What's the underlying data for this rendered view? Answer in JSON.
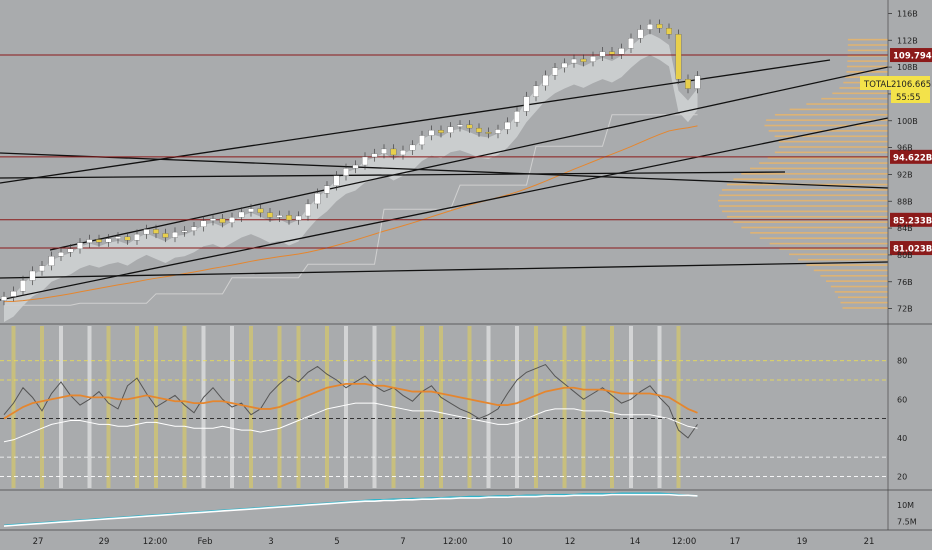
{
  "chart_data": {
    "type": "line",
    "instrument_label": "TOTAL2",
    "last_price_label": "106.665B",
    "countdown_label": "55:55",
    "price_axis": {
      "scale": "linear",
      "range": [
        70,
        118
      ],
      "unit": "B",
      "ticks": [
        "116B",
        "112B",
        "108B",
        "104B",
        "100B",
        "96B",
        "92B",
        "88B",
        "84B",
        "80B",
        "76B",
        "72B"
      ]
    },
    "x_axis": {
      "ticks": [
        "27",
        "29",
        "12:00",
        "Feb",
        "3",
        "5",
        "7",
        "12:00",
        "10",
        "12",
        "14",
        "12:00",
        "17",
        "19",
        "21"
      ]
    },
    "horizontal_levels": [
      {
        "value": 109.794,
        "label": "109.794B"
      },
      {
        "value": 94.622,
        "label": "94.622B"
      },
      {
        "value": 85.233,
        "label": "85.233B"
      },
      {
        "value": 81.023,
        "label": "81.023B"
      }
    ],
    "price_series": {
      "name": "",
      "step_days": 0.5,
      "values": [
        73.8,
        74.6,
        76.2,
        77.6,
        78.4,
        79.8,
        80.4,
        80.9,
        81.8,
        82.3,
        81.9,
        82.4,
        82.7,
        82.2,
        83.1,
        83.8,
        83.2,
        82.6,
        83.4,
        83.6,
        84.2,
        85.1,
        85.4,
        84.8,
        85.6,
        86.4,
        86.9,
        86.3,
        85.6,
        85.9,
        85.2,
        85.8,
        87.6,
        89.2,
        90.3,
        91.8,
        92.9,
        93.4,
        94.6,
        95.1,
        95.8,
        94.9,
        95.6,
        96.4,
        97.8,
        98.6,
        98.2,
        99.1,
        99.4,
        98.9,
        98.3,
        98.1,
        98.7,
        99.8,
        101.4,
        103.6,
        105.2,
        106.8,
        107.9,
        108.6,
        109.2,
        108.8,
        109.6,
        110.3,
        109.9,
        110.8,
        112.3,
        113.6,
        114.4,
        113.8,
        112.9,
        106.2,
        104.8,
        106.7
      ]
    },
    "indicator_panel": {
      "ticks": [
        "80",
        "60",
        "40",
        "20"
      ],
      "range": [
        14,
        98
      ],
      "reference_levels": [
        80,
        70,
        50,
        30,
        20
      ],
      "series": [
        {
          "name": "",
          "color": "#555555",
          "values": [
            52,
            58,
            66,
            61,
            54,
            63,
            69,
            62,
            57,
            60,
            64,
            58,
            55,
            67,
            71,
            63,
            56,
            59,
            62,
            57,
            53,
            61,
            66,
            60,
            56,
            58,
            52,
            55,
            63,
            68,
            72,
            69,
            74,
            77,
            73,
            70,
            66,
            69,
            72,
            67,
            64,
            66,
            62,
            59,
            64,
            67,
            61,
            58,
            55,
            53,
            50,
            52,
            55,
            63,
            70,
            74,
            76,
            78,
            72,
            68,
            64,
            60,
            63,
            66,
            62,
            58,
            60,
            64,
            67,
            61,
            56,
            44,
            40,
            47
          ]
        },
        {
          "name": "",
          "color": "#e5862e",
          "values": [
            50,
            53,
            56,
            58,
            59,
            60,
            61,
            62,
            62,
            61,
            61,
            61,
            60,
            60,
            61,
            62,
            61,
            60,
            59,
            59,
            58,
            58,
            59,
            59,
            58,
            57,
            56,
            55,
            55,
            56,
            58,
            60,
            62,
            64,
            66,
            67,
            68,
            68,
            68,
            67,
            67,
            66,
            65,
            64,
            64,
            64,
            63,
            62,
            61,
            60,
            59,
            58,
            57,
            57,
            58,
            60,
            62,
            64,
            65,
            66,
            66,
            65,
            65,
            65,
            64,
            63,
            63,
            63,
            63,
            62,
            61,
            58,
            55,
            53
          ]
        },
        {
          "name": "",
          "color": "#ffffff",
          "values": [
            38,
            39,
            41,
            43,
            45,
            47,
            48,
            49,
            49,
            48,
            47,
            47,
            46,
            46,
            47,
            48,
            48,
            47,
            46,
            46,
            45,
            45,
            45,
            46,
            45,
            44,
            44,
            43,
            44,
            45,
            47,
            49,
            51,
            53,
            55,
            56,
            57,
            58,
            58,
            58,
            57,
            56,
            55,
            54,
            54,
            54,
            53,
            52,
            51,
            50,
            49,
            48,
            47,
            47,
            48,
            50,
            52,
            54,
            55,
            55,
            55,
            54,
            54,
            54,
            53,
            52,
            52,
            52,
            52,
            51,
            50,
            48,
            46,
            45
          ]
        }
      ]
    },
    "lower_panel": {
      "ticks": [
        "10M",
        "7.5M"
      ],
      "range": [
        6.5,
        12
      ],
      "series": [
        {
          "name": "",
          "color": "#2fb3c9",
          "values": [
            6.9,
            7.0,
            7.1,
            7.2,
            7.3,
            7.4,
            7.5,
            7.6,
            7.7,
            7.8,
            7.9,
            8.0,
            8.1,
            8.2,
            8.3,
            8.4,
            8.5,
            8.6,
            8.7,
            8.8,
            8.9,
            9.0,
            9.1,
            9.2,
            9.3,
            9.4,
            9.5,
            9.6,
            9.7,
            9.8,
            9.9,
            10.0,
            10.1,
            10.2,
            10.3,
            10.4,
            10.5,
            10.6,
            10.7,
            10.8,
            10.8,
            10.9,
            10.9,
            11.0,
            11.0,
            11.1,
            11.1,
            11.2,
            11.2,
            11.3,
            11.3,
            11.3,
            11.4,
            11.4,
            11.4,
            11.5,
            11.5,
            11.5,
            11.6,
            11.6,
            11.6,
            11.7,
            11.7,
            11.7,
            11.7,
            11.8,
            11.8,
            11.8,
            11.8,
            11.8,
            11.7,
            11.6,
            11.5,
            11.4
          ]
        },
        {
          "name": "",
          "color": "#ffffff",
          "values": [
            6.8,
            6.9,
            7.0,
            7.1,
            7.2,
            7.3,
            7.4,
            7.5,
            7.6,
            7.7,
            7.8,
            7.9,
            8.0,
            8.1,
            8.2,
            8.3,
            8.4,
            8.5,
            8.6,
            8.7,
            8.8,
            8.9,
            9.0,
            9.1,
            9.2,
            9.3,
            9.4,
            9.5,
            9.6,
            9.7,
            9.8,
            9.9,
            10.0,
            10.1,
            10.2,
            10.3,
            10.4,
            10.5,
            10.6,
            10.6,
            10.7,
            10.7,
            10.8,
            10.8,
            10.9,
            10.9,
            11.0,
            11.0,
            11.1,
            11.1,
            11.1,
            11.2,
            11.2,
            11.2,
            11.3,
            11.3,
            11.3,
            11.4,
            11.4,
            11.4,
            11.5,
            11.5,
            11.5,
            11.5,
            11.6,
            11.6,
            11.6,
            11.6,
            11.6,
            11.6,
            11.6,
            11.5,
            11.5,
            11.4
          ]
        }
      ]
    },
    "colors": {
      "background": "#a9abad",
      "candle_up": "#ffffff",
      "candle_down": "#e8cf4c",
      "level_line": "#8b1a1a",
      "level_label_bg": "#8b1a1a",
      "volume_profile": "#e8b46a",
      "ema_orange": "#e5862e",
      "trendline": "#111111"
    },
    "grid": false
  }
}
